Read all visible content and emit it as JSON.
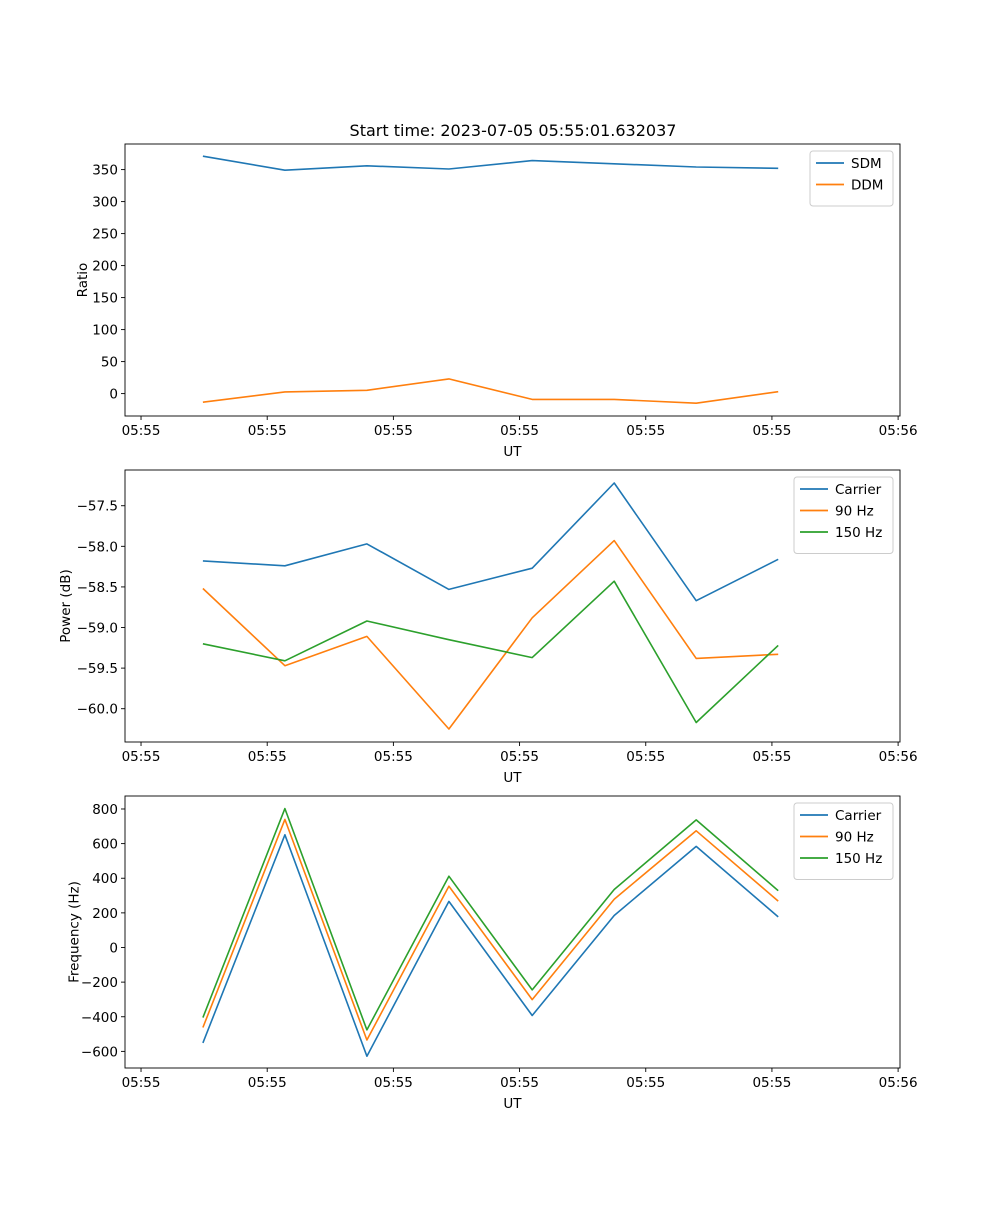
{
  "title": "Start time: 2023-07-05 05:55:01.632037",
  "colors": {
    "blue": "#1f77b4",
    "orange": "#ff7f0e",
    "green": "#2ca02c"
  },
  "chart_data": [
    {
      "type": "line",
      "title": "Start time: 2023-07-05 05:55:01.632037",
      "xlabel": "UT",
      "ylabel": "Ratio",
      "x_seconds_after_0555": [
        4.9,
        11.4,
        17.9,
        24.4,
        31.0,
        37.5,
        44.0,
        50.5
      ],
      "xlim": [
        -1.27,
        60.15
      ],
      "xticks": [
        0,
        10,
        20,
        30,
        40,
        50,
        60
      ],
      "xtick_labels": [
        "05:55",
        "05:55",
        "05:55",
        "05:55",
        "05:55",
        "05:55",
        "05:56"
      ],
      "ylim": [
        -35,
        390
      ],
      "yticks": [
        0,
        50,
        100,
        150,
        200,
        250,
        300,
        350
      ],
      "ytick_labels": [
        "0",
        "50",
        "100",
        "150",
        "200",
        "250",
        "300",
        "350"
      ],
      "legend_position": "top-right",
      "series": [
        {
          "name": "SDM",
          "color": "#1f77b4",
          "values": [
            371,
            349,
            356,
            351,
            364,
            359,
            354,
            352
          ]
        },
        {
          "name": "DDM",
          "color": "#ff7f0e",
          "values": [
            -13.5,
            2.6,
            5.2,
            23,
            -9,
            -9,
            -15,
            3
          ]
        }
      ]
    },
    {
      "type": "line",
      "xlabel": "UT",
      "ylabel": "Power (dB)",
      "x_seconds_after_0555": [
        4.9,
        11.4,
        17.9,
        24.4,
        31.0,
        37.5,
        44.0,
        50.5
      ],
      "xlim": [
        -1.27,
        60.15
      ],
      "xticks": [
        0,
        10,
        20,
        30,
        40,
        50,
        60
      ],
      "xtick_labels": [
        "05:55",
        "05:55",
        "05:55",
        "05:55",
        "05:55",
        "05:55",
        "05:56"
      ],
      "ylim": [
        -60.41,
        -57.06
      ],
      "yticks": [
        -60.0,
        -59.5,
        -59.0,
        -58.5,
        -58.0,
        -57.5
      ],
      "ytick_labels": [
        "−60.0",
        "−59.5",
        "−59.0",
        "−58.5",
        "−58.0",
        "−57.5"
      ],
      "legend_position": "top-right",
      "series": [
        {
          "name": "Carrier",
          "color": "#1f77b4",
          "values": [
            -58.18,
            -58.24,
            -57.97,
            -58.53,
            -58.27,
            -57.22,
            -58.67,
            -58.16
          ]
        },
        {
          "name": "90 Hz",
          "color": "#ff7f0e",
          "values": [
            -58.52,
            -59.47,
            -59.11,
            -60.25,
            -58.88,
            -57.93,
            -59.38,
            -59.33
          ]
        },
        {
          "name": "150 Hz",
          "color": "#2ca02c",
          "values": [
            -59.2,
            -59.41,
            -58.92,
            -59.15,
            -59.37,
            -58.43,
            -60.17,
            -59.22
          ]
        }
      ]
    },
    {
      "type": "line",
      "xlabel": "UT",
      "ylabel": "Frequency (Hz)",
      "x_seconds_after_0555": [
        4.9,
        11.4,
        17.9,
        24.4,
        31.0,
        37.5,
        44.0,
        50.5
      ],
      "xlim": [
        -1.27,
        60.15
      ],
      "xticks": [
        0,
        10,
        20,
        30,
        40,
        50,
        60
      ],
      "xtick_labels": [
        "05:55",
        "05:55",
        "05:55",
        "05:55",
        "05:55",
        "05:55",
        "05:56"
      ],
      "ylim": [
        -696,
        875
      ],
      "yticks": [
        -600,
        -400,
        -200,
        0,
        200,
        400,
        600,
        800
      ],
      "ytick_labels": [
        "−600",
        "−400",
        "−200",
        "0",
        "200",
        "400",
        "600",
        "800"
      ],
      "legend_position": "top-right",
      "series": [
        {
          "name": "Carrier",
          "color": "#1f77b4",
          "values": [
            -551,
            651,
            -628,
            266,
            -393,
            185,
            584,
            177
          ]
        },
        {
          "name": "90 Hz",
          "color": "#ff7f0e",
          "values": [
            -462,
            740,
            -534,
            354,
            -301,
            279,
            674,
            268
          ]
        },
        {
          "name": "150 Hz",
          "color": "#2ca02c",
          "values": [
            -405,
            802,
            -476,
            412,
            -245,
            335,
            737,
            328
          ]
        }
      ]
    }
  ]
}
